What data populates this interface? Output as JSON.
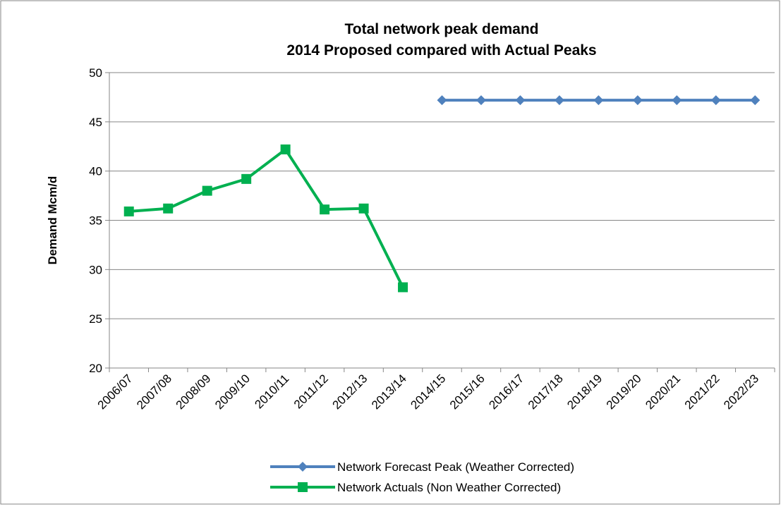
{
  "chart_data": {
    "type": "line",
    "title": [
      "Total network peak demand",
      "2014 Proposed compared with  Actual Peaks"
    ],
    "y_label": "Demand Mcm/d",
    "categories": [
      "2006/07",
      "2007/08",
      "2008/09",
      "2009/10",
      "2010/11",
      "2011/12",
      "2012/13",
      "2013/14",
      "2014/15",
      "2015/16",
      "2016/17",
      "2017/18",
      "2018/19",
      "2019/20",
      "2020/21",
      "2021/22",
      "2022/23"
    ],
    "series": [
      {
        "name": "Network Forecast Peak (Weather Corrected)",
        "color": "#4f81bd",
        "marker": "diamond",
        "values": [
          null,
          null,
          null,
          null,
          null,
          null,
          null,
          null,
          47.2,
          47.2,
          47.2,
          47.2,
          47.2,
          47.2,
          47.2,
          47.2,
          47.2
        ]
      },
      {
        "name": "Network Actuals (Non Weather Corrected)",
        "color": "#00b050",
        "marker": "square",
        "values": [
          35.9,
          36.2,
          38.0,
          39.2,
          42.2,
          36.1,
          36.2,
          28.2,
          null,
          null,
          null,
          null,
          null,
          null,
          null,
          null,
          null
        ]
      }
    ],
    "ylim": [
      20,
      50
    ],
    "yticks": [
      20,
      25,
      30,
      35,
      40,
      45,
      50
    ],
    "grid": true,
    "legend": "bottom"
  }
}
